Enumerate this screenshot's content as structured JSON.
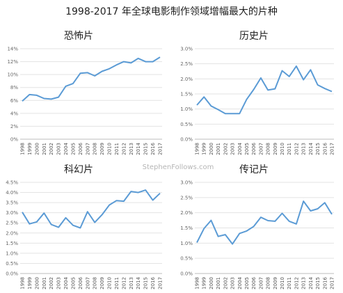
{
  "title": "1998-2017 年全球电影制作领域增幅最大的片种",
  "watermark": "StephenFollows.com",
  "colors": {
    "line": "#5b9bd5",
    "grid": "#e3e3e3",
    "text": "#222222"
  },
  "chart_data": [
    {
      "type": "line",
      "title": "恐怖片",
      "grid": true,
      "x": [
        "1998",
        "1999",
        "2000",
        "2001",
        "2002",
        "2003",
        "2004",
        "2005",
        "2006",
        "2007",
        "2008",
        "2009",
        "2010",
        "2011",
        "2012",
        "2013",
        "2014",
        "2015",
        "2016",
        "2017"
      ],
      "ylim": [
        0,
        14
      ],
      "yticks": [
        "0%",
        "2%",
        "4%",
        "6%",
        "8%",
        "10%",
        "12%",
        "14%"
      ],
      "series": [
        {
          "values": [
            5.9,
            6.9,
            6.8,
            6.3,
            6.2,
            6.5,
            8.2,
            8.6,
            10.2,
            10.3,
            9.8,
            10.5,
            10.9,
            11.5,
            12.0,
            11.8,
            12.5,
            12.0,
            12.0,
            12.7
          ]
        }
      ]
    },
    {
      "type": "line",
      "title": "历史片",
      "grid": true,
      "x": [
        "1998",
        "1999",
        "2000",
        "2001",
        "2002",
        "2003",
        "2004",
        "2005",
        "2006",
        "2007",
        "2008",
        "2009",
        "2010",
        "2011",
        "2012",
        "2013",
        "2014",
        "2015",
        "2016",
        "2017"
      ],
      "ylim": [
        0,
        3.0
      ],
      "yticks": [
        "0.0%",
        "0.5%",
        "1.0%",
        "1.5%",
        "2.0%",
        "2.5%",
        "3.0%"
      ],
      "series": [
        {
          "values": [
            1.13,
            1.4,
            1.1,
            0.98,
            0.85,
            0.85,
            0.85,
            1.32,
            1.65,
            2.03,
            1.63,
            1.67,
            2.27,
            2.08,
            2.42,
            1.97,
            2.3,
            1.8,
            1.68,
            1.58
          ]
        }
      ]
    },
    {
      "type": "line",
      "title": "科幻片",
      "grid": true,
      "x": [
        "1998",
        "1999",
        "2000",
        "2001",
        "2002",
        "2003",
        "2004",
        "2005",
        "2006",
        "2007",
        "2008",
        "2009",
        "2010",
        "2011",
        "2012",
        "2013",
        "2014",
        "2015",
        "2016",
        "2017"
      ],
      "ylim": [
        0,
        4.5
      ],
      "yticks": [
        "0.0%",
        "0.5%",
        "1.0%",
        "1.5%",
        "2.0%",
        "2.5%",
        "3.0%",
        "3.5%",
        "4.0%",
        "4.5%"
      ],
      "series": [
        {
          "values": [
            3.03,
            2.45,
            2.55,
            2.98,
            2.42,
            2.28,
            2.75,
            2.38,
            2.25,
            3.05,
            2.52,
            2.9,
            3.38,
            3.6,
            3.57,
            4.05,
            4.0,
            4.12,
            3.62,
            3.96
          ]
        }
      ]
    },
    {
      "type": "line",
      "title": "传记片",
      "grid": true,
      "x": [
        "1998",
        "1999",
        "2000",
        "2001",
        "2002",
        "2003",
        "2004",
        "2005",
        "2006",
        "2007",
        "2008",
        "2009",
        "2010",
        "2011",
        "2012",
        "2013",
        "2014",
        "2015",
        "2016",
        "2017"
      ],
      "ylim": [
        0,
        3.0
      ],
      "yticks": [
        "0.0%",
        "0.5%",
        "1.0%",
        "1.5%",
        "2.0%",
        "2.5%",
        "3.0%"
      ],
      "series": [
        {
          "values": [
            1.02,
            1.48,
            1.75,
            1.22,
            1.28,
            0.97,
            1.32,
            1.4,
            1.55,
            1.85,
            1.74,
            1.72,
            1.98,
            1.72,
            1.63,
            2.38,
            2.06,
            2.13,
            2.33,
            1.95
          ]
        }
      ]
    }
  ]
}
